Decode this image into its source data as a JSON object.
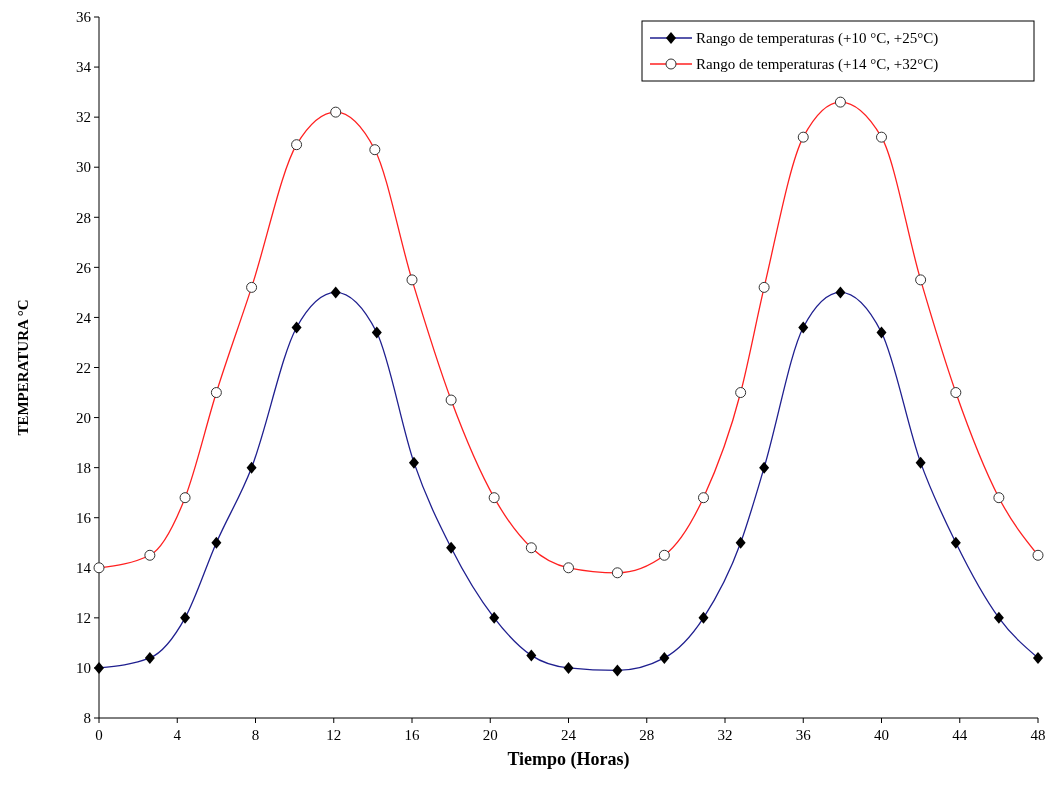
{
  "chart_data": {
    "type": "line",
    "xlabel": "Tiempo (Horas)",
    "ylabel": "TEMPERATURA °C",
    "xlim": [
      0,
      48
    ],
    "xticks": [
      0,
      4,
      8,
      12,
      16,
      20,
      24,
      28,
      32,
      36,
      40,
      44,
      48
    ],
    "ylim": [
      8,
      36
    ],
    "yticks": [
      8,
      10,
      12,
      14,
      16,
      18,
      20,
      22,
      24,
      26,
      28,
      30,
      32,
      34,
      36
    ],
    "grid": false,
    "legend": "top right",
    "line_style": "solid",
    "series": [
      {
        "name": "Rango de temperaturas (+10 °C, +25°C)",
        "color": "#1f1f8f",
        "marker": "diamond",
        "x": [
          0,
          2.6,
          4.4,
          6,
          7.8,
          10.1,
          12.1,
          14.2,
          16.1,
          18,
          20.2,
          22.1,
          24,
          26.5,
          28.9,
          30.9,
          32.8,
          34,
          36,
          37.9,
          40,
          42,
          43.8,
          46,
          48
        ],
        "values": [
          10,
          10.4,
          12,
          15,
          18,
          23.6,
          25,
          23.4,
          18.2,
          14.8,
          12,
          10.5,
          10,
          9.9,
          10.4,
          12,
          15,
          18,
          23.6,
          25,
          23.4,
          18.2,
          15,
          12,
          10.4
        ]
      },
      {
        "name": "Rango de temperaturas (+14 °C, +32°C)",
        "color": "#ff2020",
        "marker": "circle",
        "x": [
          0,
          2.6,
          4.4,
          6,
          7.8,
          10.1,
          12.1,
          14.1,
          16,
          18,
          20.2,
          22.1,
          24,
          26.5,
          28.9,
          30.9,
          32.8,
          34,
          36,
          37.9,
          40,
          42,
          43.8,
          46,
          48
        ],
        "values": [
          14,
          14.5,
          16.8,
          21,
          25.2,
          30.9,
          32.2,
          30.7,
          25.5,
          20.7,
          16.8,
          14.8,
          14,
          13.8,
          14.5,
          16.8,
          21,
          25.2,
          31.2,
          32.6,
          31.2,
          25.5,
          21,
          16.8,
          14.5
        ]
      }
    ]
  }
}
